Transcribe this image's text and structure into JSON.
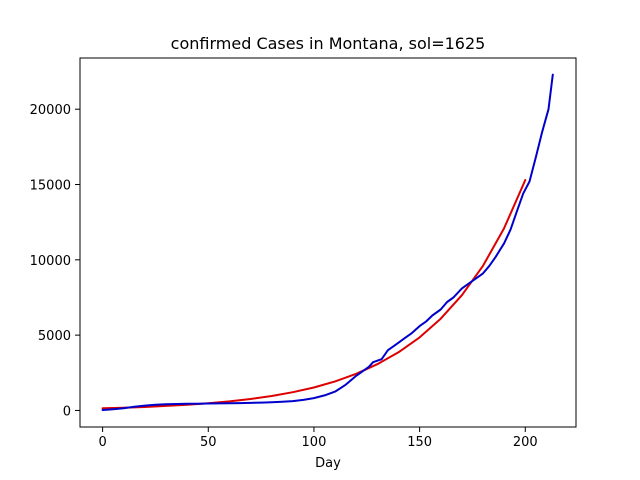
{
  "chart_data": {
    "type": "line",
    "title": "confirmed Cases in Montana, sol=1625",
    "xlabel": "Day",
    "ylabel": "",
    "xlim": [
      -10.7,
      224
    ],
    "ylim": [
      -1100,
      23400
    ],
    "x_ticks": [
      0,
      50,
      100,
      150,
      200
    ],
    "y_ticks": [
      0,
      5000,
      10000,
      15000,
      20000
    ],
    "grid": false,
    "series": [
      {
        "color": "#dd0000",
        "x": [
          0,
          10,
          20,
          30,
          40,
          50,
          60,
          70,
          80,
          90,
          100,
          110,
          120,
          130,
          140,
          150,
          160,
          170,
          180,
          190,
          200
        ],
        "y": [
          150,
          180,
          230,
          300,
          380,
          480,
          600,
          760,
          960,
          1210,
          1520,
          1930,
          2430,
          3070,
          3860,
          4850,
          6090,
          7650,
          9600,
          12100,
          15300
        ]
      },
      {
        "color": "#0000cc",
        "x": [
          0,
          5,
          10,
          15,
          20,
          25,
          30,
          35,
          40,
          45,
          50,
          55,
          60,
          65,
          70,
          75,
          80,
          85,
          90,
          95,
          100,
          105,
          110,
          115,
          120,
          123,
          126,
          128,
          130,
          132,
          135,
          138,
          140,
          143,
          146,
          150,
          153,
          156,
          160,
          163,
          166,
          170,
          173,
          176,
          180,
          183,
          186,
          190,
          193,
          196,
          199,
          202,
          205,
          208,
          211,
          213
        ],
        "y": [
          30,
          80,
          150,
          240,
          320,
          380,
          410,
          430,
          440,
          450,
          460,
          470,
          480,
          490,
          500,
          520,
          540,
          570,
          620,
          700,
          820,
          1000,
          1250,
          1700,
          2300,
          2600,
          2900,
          3200,
          3300,
          3400,
          4000,
          4300,
          4500,
          4800,
          5100,
          5600,
          5900,
          6300,
          6700,
          7200,
          7500,
          8100,
          8400,
          8700,
          9100,
          9600,
          10200,
          11100,
          12000,
          13200,
          14400,
          15200,
          16800,
          18500,
          20000,
          22300
        ]
      }
    ]
  }
}
